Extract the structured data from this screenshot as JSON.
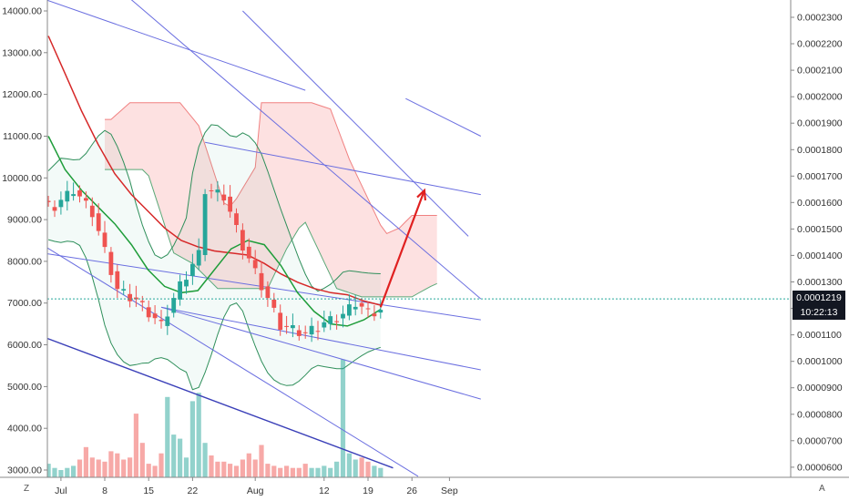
{
  "chart_data": {
    "type": "candlestick",
    "left_axis": {
      "ylim": [
        2800,
        14300
      ],
      "ticks": [
        "14000.00",
        "13000.00",
        "12000.00",
        "11000.00",
        "10000.00",
        "9000.00",
        "8000.00",
        "7000.00",
        "6000.00",
        "5000.00",
        "4000.00",
        "3000.00"
      ]
    },
    "right_axis": {
      "ticks": [
        "0.0002300",
        "0.0002200",
        "0.0002100",
        "0.0002000",
        "0.0001900",
        "0.0001800",
        "0.0001700",
        "0.0001600",
        "0.0001500",
        "0.0001400",
        "0.0001300",
        "0.0001200",
        "0.0001100",
        "0.0001000",
        "0.0000900",
        "0.0000800",
        "0.0000700",
        "0.0000600"
      ]
    },
    "x_ticks": [
      {
        "label": "Jul",
        "day": 1
      },
      {
        "label": "8",
        "day": 8
      },
      {
        "label": "15",
        "day": 15
      },
      {
        "label": "22",
        "day": 22
      },
      {
        "label": "Aug",
        "day": 32
      },
      {
        "label": "12",
        "day": 43
      },
      {
        "label": "19",
        "day": 50
      },
      {
        "label": "26",
        "day": 57
      },
      {
        "label": "Sep",
        "day": 63
      }
    ],
    "close_key_days": [
      0,
      3,
      6,
      10,
      13,
      17,
      20,
      23,
      24,
      27,
      30,
      33,
      36,
      40,
      43,
      46,
      48,
      50,
      52,
      53
    ],
    "close_key_values": [
      9300,
      9700,
      9150,
      7300,
      7050,
      6450,
      7400,
      8150,
      9700,
      9550,
      8350,
      7400,
      6450,
      6250,
      6500,
      6700,
      7000,
      6750,
      6800,
      7050
    ],
    "candle_count": 54,
    "candle_days": [
      -1,
      52
    ],
    "volume_values": [
      3150,
      3050,
      3000,
      3050,
      3100,
      3250,
      3550,
      3300,
      3250,
      3200,
      3450,
      3400,
      3250,
      3300,
      4350,
      3650,
      3150,
      3100,
      3400,
      4750,
      3850,
      3750,
      3300,
      4650,
      4850,
      3650,
      3350,
      3200,
      3200,
      3150,
      3100,
      3250,
      3400,
      3250,
      3600,
      3150,
      3100,
      3050,
      3100,
      3050,
      3050,
      3150,
      3050,
      3050,
      3100,
      3050,
      3200,
      5650,
      3400,
      3250,
      3300,
      3200,
      3100,
      3050
    ],
    "last_price": "0.0001219",
    "countdown": "10:22:13",
    "current_price_level": 7100,
    "ma_slow_values": [
      13400,
      12500,
      11600,
      10800,
      10100,
      9600,
      9200,
      8800,
      8500,
      8350,
      8250,
      8200,
      8150,
      7950,
      7700,
      7500,
      7350,
      7250,
      7200,
      7050,
      6950
    ],
    "ma_fast_values": [
      11000,
      10200,
      9700,
      9300,
      8900,
      8400,
      7800,
      7400,
      7250,
      7300,
      7800,
      8300,
      8500,
      8400,
      7900,
      7250,
      6800,
      6500,
      6450,
      6600,
      6850
    ],
    "projection_arrow": {
      "from": [
        52,
        6900
      ],
      "to": [
        59,
        9700
      ]
    }
  },
  "corner_left": "Z",
  "corner_right": "A"
}
